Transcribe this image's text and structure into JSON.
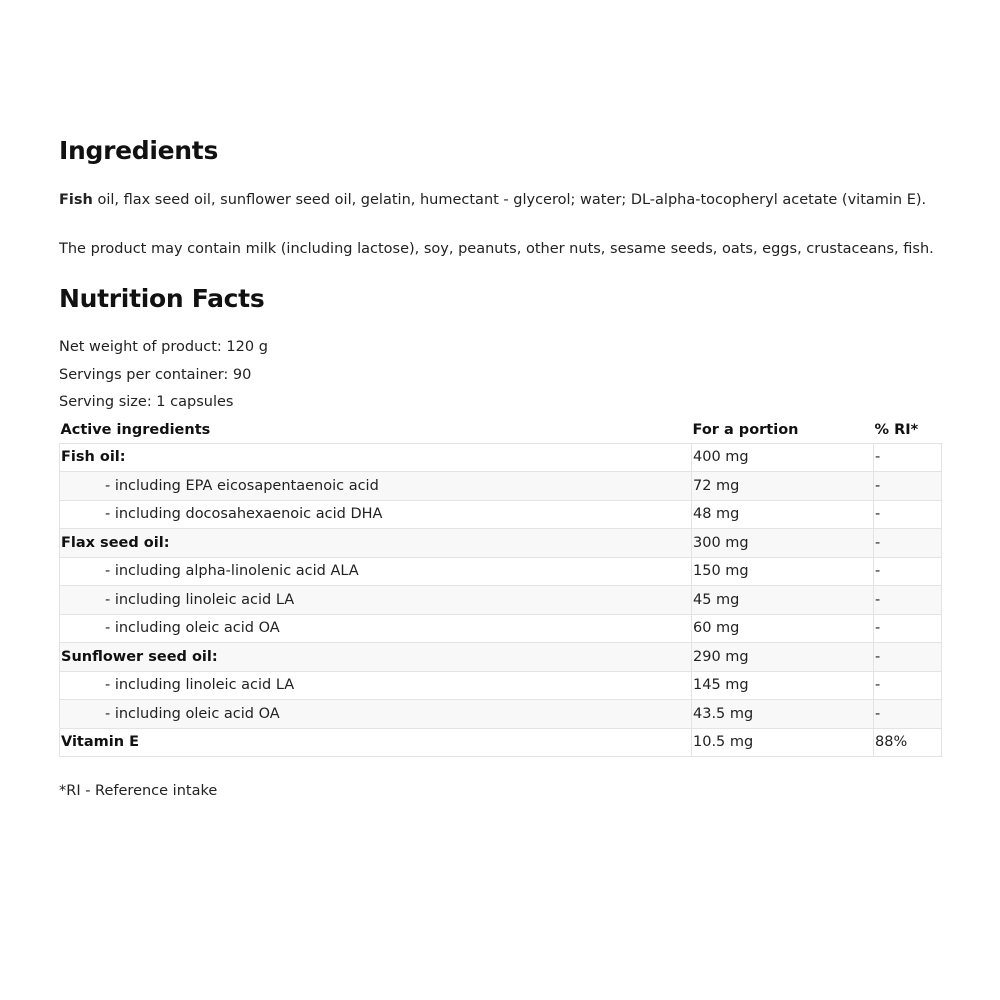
{
  "ingredients": {
    "title": "Ingredients",
    "first_word": "Fish",
    "text": " oil, flax seed oil, sunflower seed oil, gelatin, humectant - glycerol; water; DL-alpha-tocopheryl acetate (vitamin E).",
    "allergens": "The product may contain milk (including lactose), soy, peanuts, other nuts, sesame seeds, oats, eggs, crustaceans, fish."
  },
  "nutrition": {
    "title": "Nutrition Facts",
    "net_weight": "Net weight of product: 120 g",
    "servings": "Servings per container: 90",
    "serving_size": "Serving size: 1 capsules",
    "headers": [
      "Active ingredients",
      "For a portion",
      "% RI*"
    ],
    "rows": [
      {
        "name": "Fish oil:",
        "amount": "400 mg",
        "ri": "-",
        "bold": true
      },
      {
        "name": "- including EPA eicosapentaenoic acid",
        "amount": "72 mg",
        "ri": "-"
      },
      {
        "name": "- including docosahexaenoic acid DHA",
        "amount": "48 mg",
        "ri": "-"
      },
      {
        "name": "Flax seed oil:",
        "amount": "300 mg",
        "ri": "-",
        "bold": true
      },
      {
        "name": "- including alpha-linolenic acid ALA",
        "amount": "150 mg",
        "ri": "-"
      },
      {
        "name": "- including linoleic acid LA",
        "amount": "45 mg",
        "ri": "-"
      },
      {
        "name": "- including oleic acid OA",
        "amount": "60 mg",
        "ri": "-"
      },
      {
        "name": "Sunflower seed oil:",
        "amount": "290 mg",
        "ri": "-",
        "bold": true
      },
      {
        "name": "- including linoleic acid LA",
        "amount": "145 mg",
        "ri": "-"
      },
      {
        "name": "- including oleic acid OA",
        "amount": "43.5 mg",
        "ri": "-"
      },
      {
        "name": "Vitamin E",
        "amount": "10.5 mg",
        "ri": "88%",
        "bold": true
      }
    ],
    "footnote": "*RI - Reference intake"
  }
}
